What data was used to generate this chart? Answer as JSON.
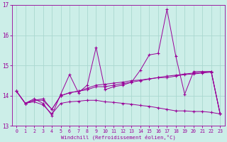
{
  "xlabel": "Windchill (Refroidissement éolien,°C)",
  "background_color": "#cceee8",
  "grid_color": "#aad8d0",
  "line_color": "#990099",
  "xlim": [
    0,
    23
  ],
  "ylim": [
    13,
    17
  ],
  "yticks": [
    13,
    14,
    15,
    16,
    17
  ],
  "xticks": [
    0,
    1,
    2,
    3,
    4,
    5,
    6,
    7,
    8,
    9,
    10,
    11,
    12,
    13,
    14,
    15,
    16,
    17,
    18,
    19,
    20,
    21,
    22,
    23
  ],
  "series1_y": [
    14.15,
    13.75,
    13.9,
    13.75,
    13.35,
    14.05,
    14.7,
    14.1,
    14.35,
    15.6,
    14.2,
    14.3,
    14.35,
    14.45,
    14.85,
    15.35,
    15.4,
    16.85,
    15.3,
    14.05,
    14.8,
    14.8,
    14.8,
    13.4
  ],
  "series2_y": [
    14.15,
    13.75,
    13.85,
    13.85,
    13.55,
    14.0,
    14.1,
    14.15,
    14.2,
    14.3,
    14.3,
    14.35,
    14.4,
    14.45,
    14.5,
    14.55,
    14.6,
    14.6,
    14.65,
    14.7,
    14.72,
    14.75,
    14.78,
    13.4
  ],
  "series3_y": [
    14.15,
    13.75,
    13.85,
    13.9,
    13.55,
    14.0,
    14.1,
    14.15,
    14.25,
    14.35,
    14.38,
    14.42,
    14.45,
    14.5,
    14.52,
    14.56,
    14.6,
    14.65,
    14.68,
    14.72,
    14.75,
    14.78,
    14.8,
    13.4
  ],
  "series4_y": [
    14.15,
    13.75,
    13.8,
    13.7,
    13.4,
    13.75,
    13.8,
    13.82,
    13.85,
    13.85,
    13.8,
    13.78,
    13.75,
    13.72,
    13.68,
    13.65,
    13.6,
    13.55,
    13.5,
    13.5,
    13.48,
    13.48,
    13.45,
    13.4
  ]
}
